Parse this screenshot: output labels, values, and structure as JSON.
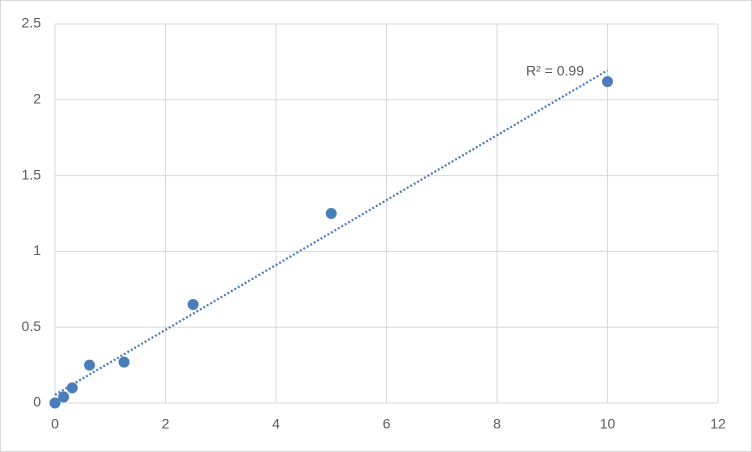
{
  "chart_data": {
    "type": "scatter",
    "annotation": "R² = 0.99",
    "x": [
      0,
      0.156,
      0.3125,
      0.625,
      1.25,
      2.5,
      5,
      10
    ],
    "values": [
      0,
      0.04,
      0.1,
      0.25,
      0.27,
      0.65,
      1.25,
      2.12
    ],
    "color": "#4a7ebb",
    "trendline": "linear",
    "xlim": [
      0,
      12
    ],
    "xticks": [
      0,
      2,
      4,
      6,
      8,
      10,
      12
    ],
    "ylim": [
      0,
      2.5
    ],
    "yticks": [
      0,
      0.5,
      1,
      1.5,
      2,
      2.5
    ],
    "grid": true
  }
}
